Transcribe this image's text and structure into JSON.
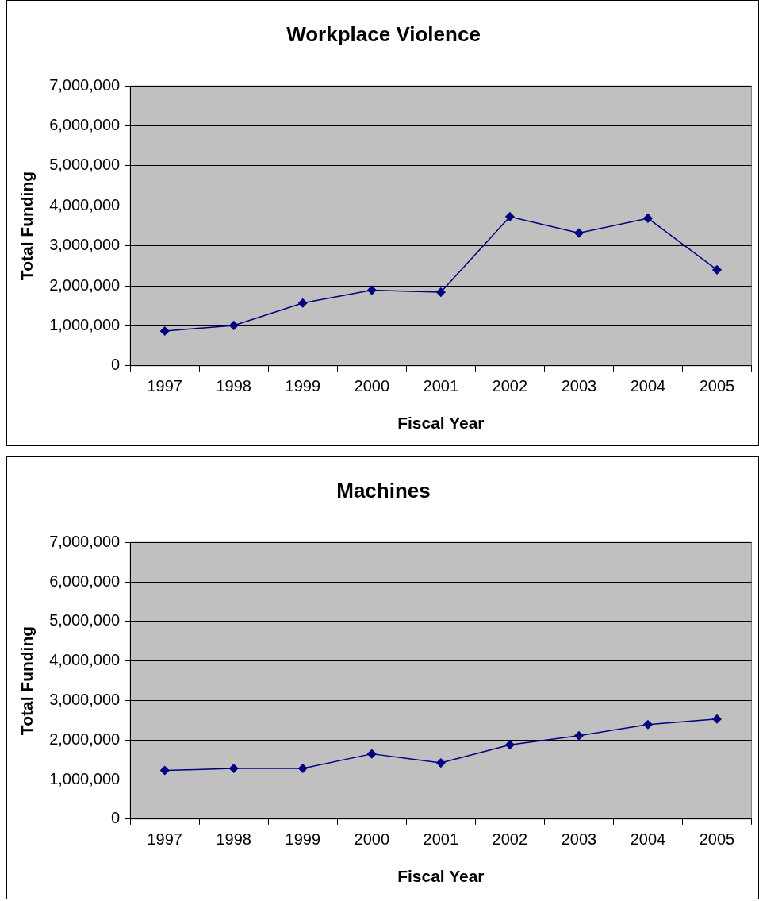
{
  "chart_data": [
    {
      "type": "line",
      "title": "Workplace Violence",
      "xlabel": "Fiscal Year",
      "ylabel": "Total Funding",
      "categories": [
        "1997",
        "1998",
        "1999",
        "2000",
        "2001",
        "2002",
        "2003",
        "2004",
        "2005"
      ],
      "series": [
        {
          "color": "#000080",
          "values": [
            870000,
            1010000,
            1570000,
            1890000,
            1840000,
            3730000,
            3320000,
            3690000,
            2400000
          ]
        }
      ],
      "ylim": [
        0,
        7000000
      ],
      "yticks": [
        {
          "value": 0,
          "label": "0"
        },
        {
          "value": 1000000,
          "label": "1,000,000"
        },
        {
          "value": 2000000,
          "label": "2,000,000"
        },
        {
          "value": 3000000,
          "label": "3,000,000"
        },
        {
          "value": 4000000,
          "label": "4,000,000"
        },
        {
          "value": 5000000,
          "label": "5,000,000"
        },
        {
          "value": 6000000,
          "label": "6,000,000"
        },
        {
          "value": 7000000,
          "label": "7,000,000"
        }
      ],
      "grid": "y",
      "legend": false,
      "marker": "diamond",
      "line_style": "solid"
    },
    {
      "type": "line",
      "title": "Machines",
      "xlabel": "Fiscal Year",
      "ylabel": "Total Funding",
      "categories": [
        "1997",
        "1998",
        "1999",
        "2000",
        "2001",
        "2002",
        "2003",
        "2004",
        "2005"
      ],
      "series": [
        {
          "color": "#000080",
          "values": [
            1230000,
            1280000,
            1280000,
            1650000,
            1420000,
            1880000,
            2110000,
            2390000,
            2530000
          ]
        }
      ],
      "ylim": [
        0,
        7000000
      ],
      "yticks": [
        {
          "value": 0,
          "label": "0"
        },
        {
          "value": 1000000,
          "label": "1,000,000"
        },
        {
          "value": 2000000,
          "label": "2,000,000"
        },
        {
          "value": 3000000,
          "label": "3,000,000"
        },
        {
          "value": 4000000,
          "label": "4,000,000"
        },
        {
          "value": 5000000,
          "label": "5,000,000"
        },
        {
          "value": 6000000,
          "label": "6,000,000"
        },
        {
          "value": 7000000,
          "label": "7,000,000"
        }
      ],
      "grid": "y",
      "legend": false,
      "marker": "diamond",
      "line_style": "solid"
    }
  ]
}
